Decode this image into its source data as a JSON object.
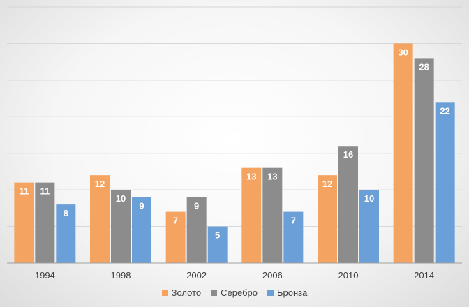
{
  "chart_data": {
    "type": "bar",
    "categories": [
      "1994",
      "1998",
      "2002",
      "2006",
      "2010",
      "2014"
    ],
    "series": [
      {
        "name": "Золото",
        "color": "#f4a460",
        "values": [
          11,
          12,
          7,
          13,
          12,
          30
        ]
      },
      {
        "name": "Серебро",
        "color": "#8c8c8c",
        "values": [
          11,
          10,
          9,
          13,
          16,
          28
        ]
      },
      {
        "name": "Бронза",
        "color": "#6a9fd8",
        "values": [
          8,
          9,
          5,
          7,
          10,
          22
        ]
      }
    ],
    "ylim": [
      0,
      35
    ],
    "grid": true,
    "legend": "bottom",
    "data_labels": true
  }
}
